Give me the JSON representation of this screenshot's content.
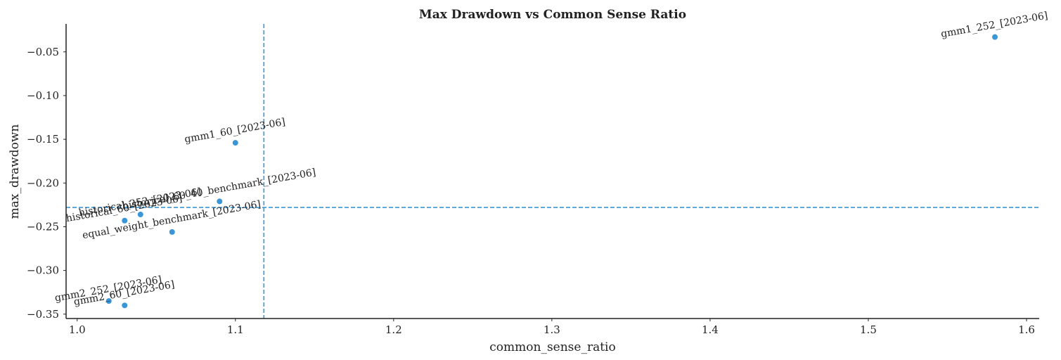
{
  "chart_data": {
    "type": "scatter",
    "title": "Max Drawdown vs Common Sense Ratio",
    "xlabel": "common_sense_ratio",
    "ylabel": "max_drawdown",
    "xlim": [
      0.993,
      1.608
    ],
    "ylim": [
      -0.355,
      -0.018
    ],
    "xticks": [
      1.0,
      1.1,
      1.2,
      1.3,
      1.4,
      1.5,
      1.6
    ],
    "xtick_labels": [
      "1.0",
      "1.1",
      "1.2",
      "1.3",
      "1.4",
      "1.5",
      "1.6"
    ],
    "yticks": [
      -0.05,
      -0.1,
      -0.15,
      -0.2,
      -0.25,
      -0.3,
      -0.35
    ],
    "ytick_labels": [
      "−0.05",
      "−0.10",
      "−0.15",
      "−0.20",
      "−0.25",
      "−0.30",
      "−0.35"
    ],
    "grid": false,
    "point_color": "#3a96d6",
    "reference_lines": {
      "vertical_x": 1.118,
      "horizontal_y": -0.228,
      "color": "#3a96d6",
      "style": "dashed"
    },
    "points": [
      {
        "label": "gmm1_252_[2023-06]",
        "x": 1.58,
        "y": -0.033
      },
      {
        "label": "gmm1_60_[2023-06]",
        "x": 1.1,
        "y": -0.154
      },
      {
        "label": "historical_60_40_benchmark_[2023-06]",
        "x": 1.09,
        "y": -0.221
      },
      {
        "label": "historical_252_[2023-06]",
        "x": 1.04,
        "y": -0.236
      },
      {
        "label": "historical_60_[2023-06]",
        "x": 1.03,
        "y": -0.243
      },
      {
        "label": "equal_weight_benchmark_[2023-06]",
        "x": 1.06,
        "y": -0.256
      },
      {
        "label": "gmm2_252_[2023-06]",
        "x": 1.02,
        "y": -0.335
      },
      {
        "label": "gmm2_60_[2023-06]",
        "x": 1.03,
        "y": -0.34
      }
    ]
  }
}
